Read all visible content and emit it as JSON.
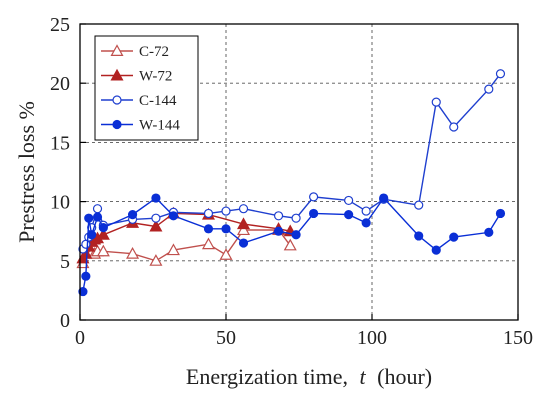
{
  "chart_data": {
    "type": "line",
    "xlabel_text": "Energization time,",
    "xlabel_var": "t",
    "xlabel_unit": "(hour)",
    "ylabel": "Prestress loss %",
    "xlim": [
      0,
      150
    ],
    "ylim": [
      0,
      25
    ],
    "x_ticks": [
      0,
      50,
      100,
      150
    ],
    "y_ticks": [
      0,
      5,
      10,
      15,
      20,
      25
    ],
    "grid": true,
    "legend_position": "top-left",
    "series": [
      {
        "name": "C-72",
        "color": "#c0504d",
        "marker": "triangle-open",
        "x": [
          1,
          2,
          3,
          4,
          5,
          6,
          8,
          18,
          26,
          32,
          44,
          50,
          56,
          68,
          72
        ],
        "y": [
          4.8,
          6.3,
          6.0,
          5.7,
          5.6,
          5.8,
          5.8,
          5.6,
          5.0,
          5.9,
          6.4,
          5.5,
          7.6,
          7.6,
          6.3
        ]
      },
      {
        "name": "W-72",
        "color": "#b22222",
        "marker": "triangle-filled",
        "x": [
          1,
          2,
          3,
          4,
          5,
          6,
          8,
          18,
          26,
          32,
          44,
          56,
          68,
          72
        ],
        "y": [
          5.2,
          5.6,
          6.2,
          6.6,
          6.8,
          6.9,
          7.2,
          8.2,
          7.9,
          9.0,
          8.9,
          8.1,
          7.7,
          7.5
        ]
      },
      {
        "name": "C-144",
        "color": "#1f3fcf",
        "marker": "circle-open",
        "x": [
          1,
          2,
          3,
          4,
          6,
          8,
          18,
          26,
          32,
          44,
          50,
          56,
          68,
          74,
          80,
          92,
          98,
          104,
          116,
          122,
          128,
          140,
          144
        ],
        "y": [
          6.0,
          6.4,
          7.0,
          7.8,
          9.4,
          8.0,
          8.5,
          8.6,
          9.1,
          9.0,
          9.2,
          9.4,
          8.8,
          8.6,
          10.4,
          10.1,
          9.2,
          10.2,
          9.7,
          18.4,
          16.3,
          19.5,
          20.8
        ]
      },
      {
        "name": "W-144",
        "color": "#0a2fd6",
        "marker": "circle-filled",
        "x": [
          1,
          2,
          3,
          4,
          6,
          8,
          18,
          26,
          32,
          44,
          50,
          56,
          68,
          74,
          80,
          92,
          98,
          104,
          116,
          122,
          128,
          140,
          144
        ],
        "y": [
          2.4,
          3.7,
          8.6,
          7.2,
          8.7,
          7.8,
          8.9,
          10.3,
          8.8,
          7.7,
          7.7,
          6.5,
          7.5,
          7.2,
          9.0,
          8.9,
          8.2,
          10.3,
          7.1,
          5.9,
          7.0,
          7.4,
          9.0
        ]
      }
    ]
  }
}
